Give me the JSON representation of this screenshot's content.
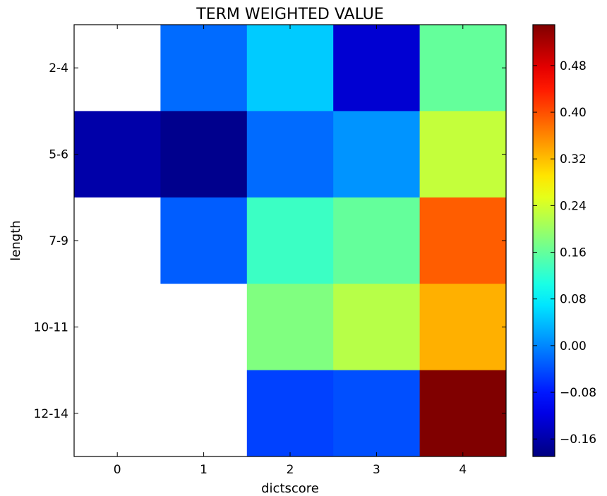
{
  "chart_data": {
    "type": "heatmap",
    "title": "TERM WEIGHTED VALUE",
    "xlabel": "dictscore",
    "ylabel": "length",
    "x_categories": [
      "0",
      "1",
      "2",
      "3",
      "4"
    ],
    "y_categories": [
      "2-4",
      "5-6",
      "7-9",
      "10-11",
      "12-14"
    ],
    "values": [
      [
        null,
        -0.02,
        0.05,
        -0.13,
        0.16
      ],
      [
        -0.16,
        -0.18,
        -0.02,
        0.01,
        0.23
      ],
      [
        null,
        -0.03,
        0.13,
        0.16,
        0.39
      ],
      [
        null,
        null,
        0.18,
        0.22,
        0.33
      ],
      [
        null,
        null,
        -0.05,
        -0.04,
        0.55
      ]
    ],
    "colormap": "jet",
    "vmin": -0.19,
    "vmax": 0.55,
    "missing_color": "#ffffff",
    "colorbar": {
      "ticks": [
        -0.16,
        -0.08,
        0.0,
        0.08,
        0.16,
        0.24,
        0.32,
        0.4,
        0.48
      ],
      "tick_labels": [
        "−0.16",
        "−0.08",
        "0.00",
        "0.08",
        "0.16",
        "0.24",
        "0.32",
        "0.40",
        "0.48"
      ],
      "placement": "right"
    },
    "grid": false
  }
}
